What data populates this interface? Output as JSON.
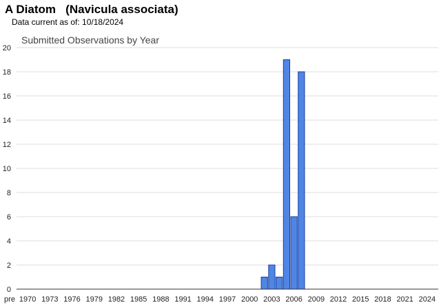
{
  "header": {
    "title": "A Diatom   (Navicula associata)",
    "data_current": "Data current as of: 10/18/2024"
  },
  "chart_data": {
    "type": "bar",
    "title": "Submitted Observations by Year",
    "xlabel": "",
    "ylabel": "",
    "ylim": [
      0,
      20
    ],
    "y_ticks": [
      0,
      2,
      4,
      6,
      8,
      10,
      12,
      14,
      16,
      18,
      20
    ],
    "x_tick_labels": [
      "pre",
      "1970",
      "1973",
      "1976",
      "1979",
      "1982",
      "1985",
      "1988",
      "1991",
      "1994",
      "1997",
      "2000",
      "2003",
      "2006",
      "2009",
      "2012",
      "2015",
      "2018",
      "2021",
      "2024"
    ],
    "categories": [
      "2002",
      "2003",
      "2004",
      "2005",
      "2006",
      "2007"
    ],
    "values": [
      1,
      2,
      1,
      19,
      6,
      18
    ],
    "bar_color": "#4f86e6",
    "bar_edge_color": "#1a3f99",
    "grid": true
  }
}
